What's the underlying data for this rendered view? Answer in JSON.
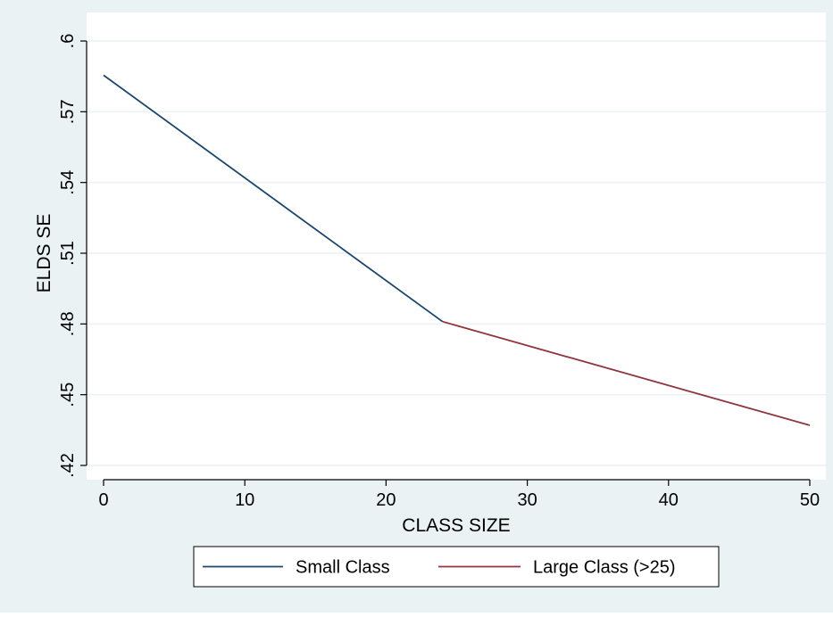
{
  "chart_data": {
    "type": "line",
    "title": "",
    "xlabel": "CLASS SIZE",
    "ylabel": "ELDS SE",
    "xlim": [
      0,
      50
    ],
    "ylim": [
      0.42,
      0.6
    ],
    "x_ticks": [
      0,
      10,
      20,
      30,
      40,
      50
    ],
    "x_tick_labels": [
      "0",
      "10",
      "20",
      "30",
      "40",
      "50"
    ],
    "y_ticks": [
      0.42,
      0.45,
      0.48,
      0.51,
      0.54,
      0.57,
      0.6
    ],
    "y_tick_labels": [
      ".42",
      ".45",
      ".48",
      ".51",
      ".54",
      ".57",
      ".6"
    ],
    "grid": true,
    "legend_position": "bottom",
    "series": [
      {
        "name": "Small Class",
        "color": "#1a476f",
        "x": [
          0,
          24
        ],
        "y": [
          0.5855,
          0.481
        ]
      },
      {
        "name": "Large Class (>25)",
        "color": "#90353b",
        "x": [
          24,
          50
        ],
        "y": [
          0.481,
          0.437
        ]
      }
    ],
    "colors": {
      "outer_background": "#eaf2f3",
      "plot_background": "#ffffff",
      "grid": "#eaf2f3"
    }
  }
}
